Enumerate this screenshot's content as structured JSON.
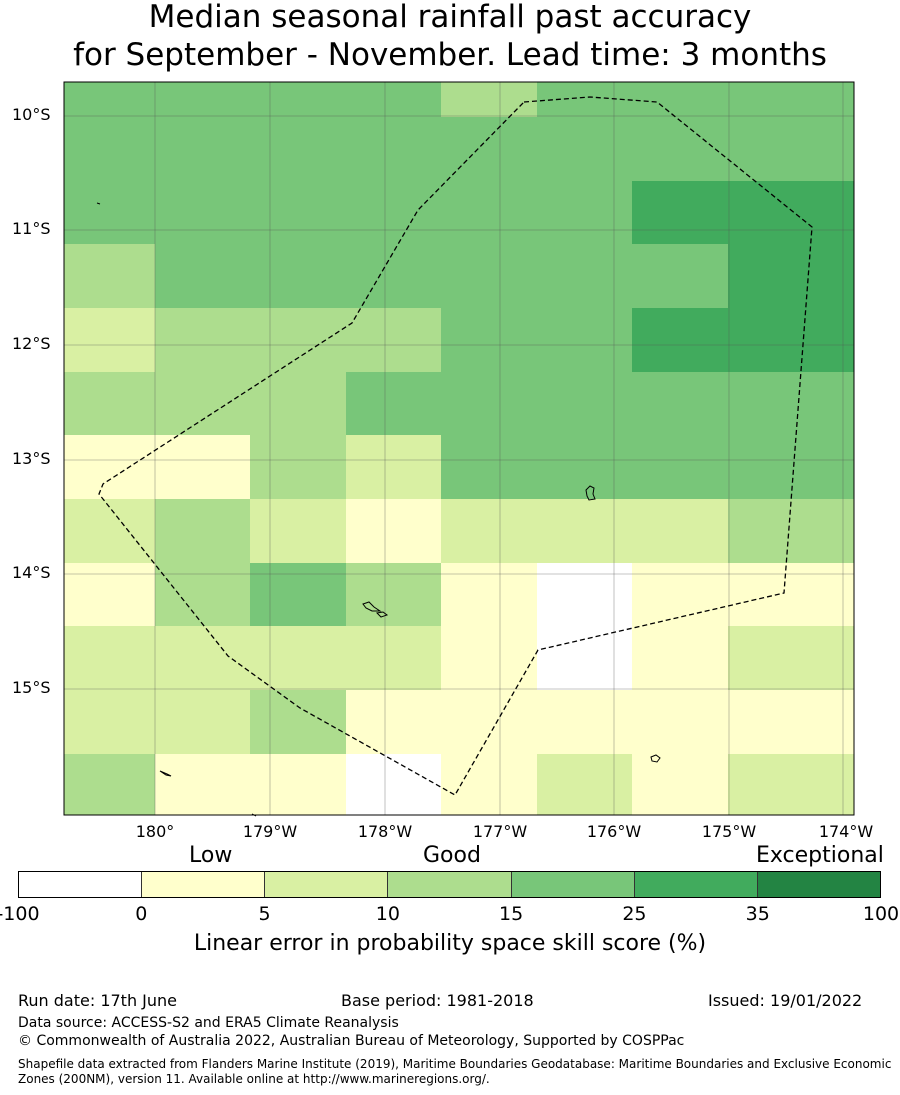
{
  "title": {
    "line1": "Median seasonal rainfall past accuracy",
    "line2": "for September - November. Lead time: 3 months"
  },
  "map": {
    "lat_labels": [
      "10°S",
      "11°S",
      "12°S",
      "13°S",
      "14°S",
      "15°S"
    ],
    "lon_labels": [
      "180°",
      "179°W",
      "178°W",
      "177°W",
      "176°W",
      "175°W",
      "174°W"
    ],
    "grid_cells_class": [
      [
        4,
        4,
        4,
        4,
        3,
        4,
        4,
        4
      ],
      [
        4,
        4,
        4,
        4,
        4,
        4,
        4,
        4
      ],
      [
        4,
        4,
        4,
        4,
        4,
        4,
        5,
        5
      ],
      [
        3,
        4,
        4,
        4,
        4,
        4,
        4,
        5
      ],
      [
        2,
        3,
        3,
        3,
        4,
        4,
        5,
        5
      ],
      [
        3,
        3,
        3,
        4,
        4,
        4,
        4,
        4
      ],
      [
        1,
        1,
        3,
        2,
        4,
        4,
        4,
        4
      ],
      [
        2,
        3,
        2,
        1,
        2,
        2,
        2,
        3
      ],
      [
        1,
        3,
        4,
        3,
        1,
        0,
        1,
        1
      ],
      [
        2,
        2,
        2,
        2,
        1,
        0,
        1,
        2
      ],
      [
        2,
        2,
        3,
        1,
        1,
        1,
        1,
        1
      ],
      [
        3,
        1,
        1,
        0,
        1,
        2,
        1,
        2
      ]
    ],
    "boundary_style": "dashed",
    "gridlines": true
  },
  "colorbar": {
    "categories": [
      "Low",
      "Good",
      "Exceptional"
    ],
    "ticks": [
      "-100",
      "0",
      "5",
      "10",
      "15",
      "25",
      "35",
      "100"
    ],
    "colors": [
      "#ffffff",
      "#ffffcc",
      "#d9f0a3",
      "#addd8e",
      "#78c679",
      "#41ab5d",
      "#238443"
    ],
    "label": "Linear error in probability space skill score (%)"
  },
  "footer": {
    "run_date": "Run date: 17th June",
    "base_period": "Base period: 1981-2018",
    "issued": "Issued: 19/01/2022",
    "data_source": "Data source: ACCESS-S2 and ERA5 Climate Reanalysis",
    "copyright": "© Commonwealth of Australia 2022, Australian Bureau of Meteorology, Supported by COSPPac",
    "shapefile": "Shapefile data extracted from Flanders Marine Institute (2019), Maritime Boundaries Geodatabase: Maritime Boundaries and Exclusive Economic Zones (200NM), version 11. Available online at http://www.marineregions.org/."
  }
}
